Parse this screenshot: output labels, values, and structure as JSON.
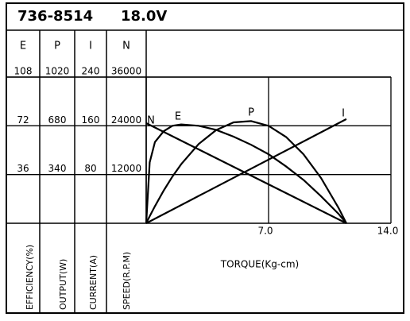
{
  "chart_data": {
    "type": "line",
    "model": "736-8514",
    "voltage": "18.0V",
    "xlabel": "TORQUE(Kg-cm)",
    "xlim": [
      0,
      14
    ],
    "xticks": [
      {
        "value": 7,
        "label": "7.0"
      },
      {
        "value": 14,
        "label": "14.0"
      }
    ],
    "grid": true,
    "columns": [
      {
        "name": "E",
        "axis_label": "EFFICIENCY(%)",
        "ylim": [
          0,
          108
        ],
        "yticks": [
          36,
          72,
          108
        ],
        "x": [
          0,
          0.2,
          0.5,
          1,
          1.5,
          2,
          3,
          4,
          5,
          6,
          7,
          8,
          9,
          10,
          11,
          11.45
        ],
        "values": [
          0,
          45,
          60,
          68,
          72,
          73,
          72,
          69,
          64,
          58,
          51,
          42,
          32,
          20,
          7,
          0
        ]
      },
      {
        "name": "P",
        "axis_label": "OUTPUT(W)",
        "ylim": [
          0,
          1020
        ],
        "yticks": [
          340,
          680,
          1020
        ],
        "x": [
          0,
          0.2,
          0.5,
          1,
          1.5,
          2,
          3,
          4,
          5,
          6,
          7,
          8,
          9,
          10,
          11,
          11.45
        ],
        "values": [
          0,
          49,
          119,
          228,
          326,
          412,
          553,
          650,
          704,
          713,
          680,
          602,
          481,
          316,
          108,
          0
        ]
      },
      {
        "name": "I",
        "axis_label": "CURRENT(A)",
        "ylim": [
          0,
          240
        ],
        "yticks": [
          80,
          160,
          240
        ],
        "x": [
          0,
          11.45
        ],
        "values": [
          0,
          171
        ]
      },
      {
        "name": "N",
        "axis_label": "SPEED(R.P.M)",
        "ylim": [
          0,
          36000
        ],
        "yticks": [
          12000,
          24000,
          36000
        ],
        "x": [
          0,
          11.45
        ],
        "values": [
          24650,
          0
        ]
      }
    ]
  }
}
